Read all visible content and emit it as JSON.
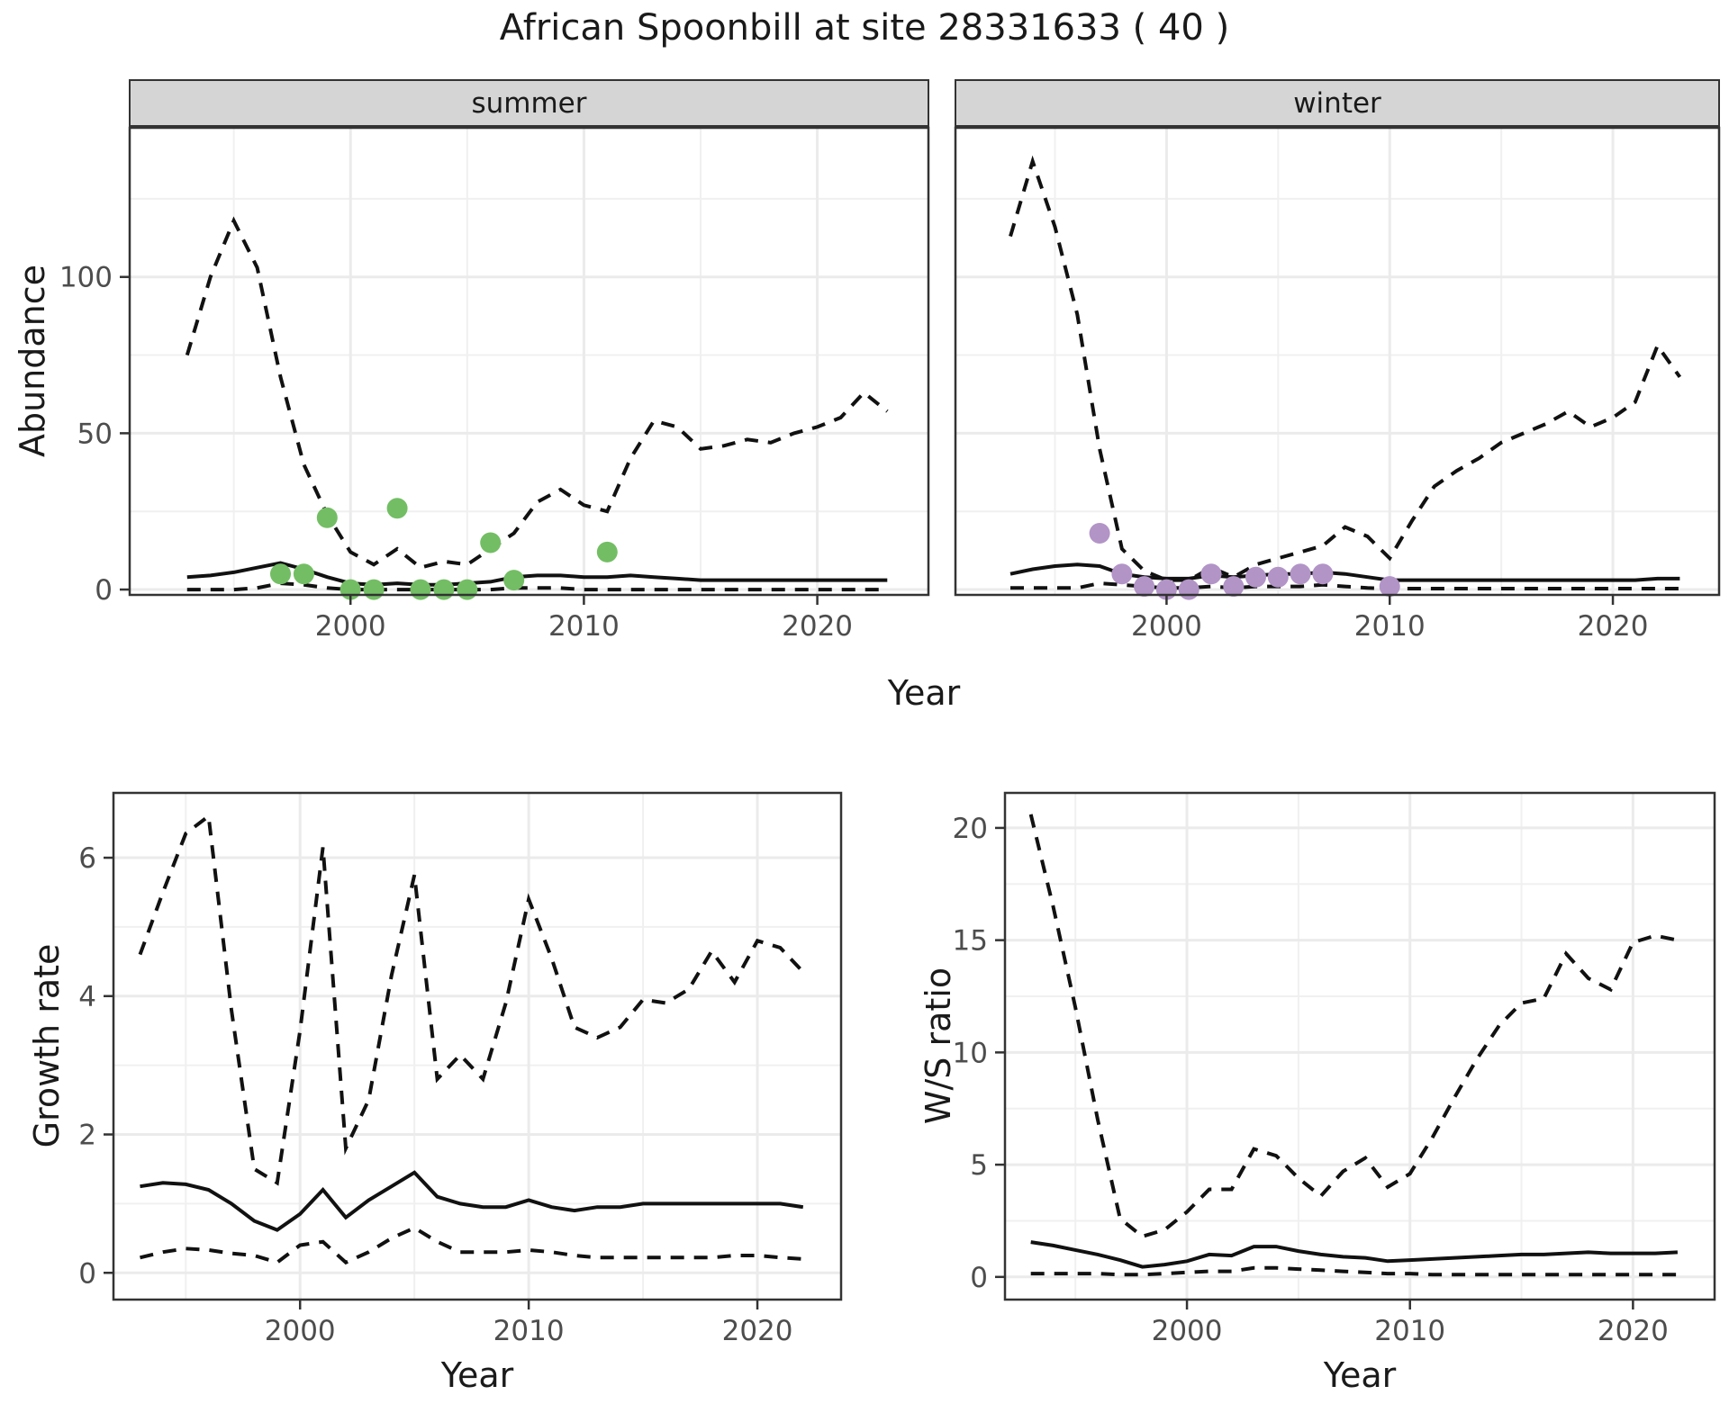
{
  "title": "African Spoonbill at site 28331633 ( 40 )",
  "facets": [
    {
      "label": "summer"
    },
    {
      "label": "winter"
    }
  ],
  "axes": {
    "abundance_label": "Abundance",
    "year_label": "Year",
    "growth_label": "Growth rate",
    "ws_label": "W/S ratio"
  },
  "colors": {
    "summer_points": "#73be64",
    "winter_points": "#b294c7",
    "line": "#111111",
    "grid_major": "#ebebeb",
    "grid_minor": "#f0f0f0",
    "panel_border": "#333333",
    "strip_bg": "#d5d5d5",
    "tick_text": "#4d4d4d"
  },
  "chart_data": [
    {
      "type": "line",
      "title": "summer",
      "xlabel": "Year",
      "ylabel": "Abundance",
      "xlim": [
        1990.5,
        2024.8
      ],
      "ylim": [
        -2,
        148
      ],
      "xticks": [
        2000,
        2010,
        2020
      ],
      "xticks_minor": [
        1995,
        2005,
        2015
      ],
      "yticks": [
        0,
        50,
        100
      ],
      "yticks_minor": [
        25,
        75,
        125
      ],
      "x": [
        1993,
        1994,
        1995,
        1996,
        1997,
        1998,
        1999,
        2000,
        2001,
        2002,
        2003,
        2004,
        2005,
        2006,
        2007,
        2008,
        2009,
        2010,
        2011,
        2012,
        2013,
        2014,
        2015,
        2016,
        2017,
        2018,
        2019,
        2020,
        2021,
        2022,
        2023
      ],
      "series": [
        {
          "name": "upper_ci",
          "style": "dashed",
          "values": [
            75,
            100,
            118,
            103,
            68,
            40,
            24,
            12,
            8,
            13,
            7,
            9,
            8,
            13,
            18,
            28,
            32,
            27,
            25,
            42,
            54,
            52,
            45,
            46,
            48,
            47,
            50,
            52,
            55,
            63,
            57
          ]
        },
        {
          "name": "mean",
          "style": "solid",
          "values": [
            4,
            4.5,
            5.5,
            7,
            8.5,
            6.5,
            4,
            2,
            1.5,
            2,
            1.5,
            1.5,
            2,
            2.5,
            4,
            4.5,
            4.5,
            4,
            4,
            4.5,
            4,
            3.5,
            3,
            3,
            3,
            3,
            3,
            3,
            3,
            3,
            3
          ]
        },
        {
          "name": "lower_ci",
          "style": "dashed",
          "values": [
            0,
            0,
            0,
            0.5,
            2,
            1.5,
            0.5,
            0,
            0,
            0,
            0,
            0,
            0,
            0,
            0.5,
            0.5,
            0.5,
            0,
            0,
            0,
            0,
            0,
            0,
            0,
            0,
            0,
            0,
            0,
            0,
            0,
            0
          ]
        }
      ],
      "points": {
        "name": "observed_counts",
        "color_key": "summer_points",
        "xy": [
          [
            1997,
            5
          ],
          [
            1998,
            5
          ],
          [
            1999,
            23
          ],
          [
            2000,
            0
          ],
          [
            2001,
            0
          ],
          [
            2002,
            26
          ],
          [
            2003,
            0
          ],
          [
            2004,
            0
          ],
          [
            2005,
            0
          ],
          [
            2006,
            15
          ],
          [
            2007,
            3
          ],
          [
            2011,
            12
          ]
        ]
      }
    },
    {
      "type": "line",
      "title": "winter",
      "xlabel": "Year",
      "ylabel": "Abundance",
      "xlim": [
        1990.5,
        2024.8
      ],
      "ylim": [
        -2,
        148
      ],
      "xticks": [
        2000,
        2010,
        2020
      ],
      "xticks_minor": [
        1995,
        2005,
        2015
      ],
      "yticks": [
        0,
        50,
        100
      ],
      "yticks_minor": [
        25,
        75,
        125
      ],
      "x": [
        1993,
        1994,
        1995,
        1996,
        1997,
        1998,
        1999,
        2000,
        2001,
        2002,
        2003,
        2004,
        2005,
        2006,
        2007,
        2008,
        2009,
        2010,
        2011,
        2012,
        2013,
        2014,
        2015,
        2016,
        2017,
        2018,
        2019,
        2020,
        2021,
        2022,
        2023
      ],
      "series": [
        {
          "name": "upper_ci",
          "style": "dashed",
          "values": [
            113,
            137,
            116,
            88,
            45,
            13,
            6,
            3,
            3,
            7,
            4,
            8,
            10,
            12,
            14,
            20,
            17,
            10,
            22,
            33,
            38,
            42,
            47,
            50,
            53,
            57,
            52,
            55,
            60,
            78,
            68
          ]
        },
        {
          "name": "mean",
          "style": "solid",
          "values": [
            5,
            6.5,
            7.5,
            8,
            7.5,
            5,
            4,
            3.5,
            3.5,
            4.5,
            4,
            4.5,
            5,
            5,
            5.5,
            5,
            4,
            3,
            3,
            3,
            3,
            3,
            3,
            3,
            3,
            3,
            3,
            3,
            3,
            3.5,
            3.5
          ]
        },
        {
          "name": "lower_ci",
          "style": "dashed",
          "values": [
            0.5,
            0.5,
            0.5,
            0.5,
            2,
            1.5,
            1,
            0.5,
            0.5,
            1,
            0.5,
            1,
            1,
            1,
            1.5,
            1,
            0.5,
            0.3,
            0.3,
            0.3,
            0.3,
            0.3,
            0.3,
            0.3,
            0.3,
            0.3,
            0.3,
            0.3,
            0.3,
            0.3,
            0.3
          ]
        }
      ],
      "points": {
        "name": "observed_counts",
        "color_key": "winter_points",
        "xy": [
          [
            1997,
            18
          ],
          [
            1998,
            5
          ],
          [
            1999,
            1
          ],
          [
            2000,
            0
          ],
          [
            2001,
            0
          ],
          [
            2002,
            5
          ],
          [
            2003,
            1
          ],
          [
            2004,
            4
          ],
          [
            2005,
            4
          ],
          [
            2006,
            5
          ],
          [
            2007,
            5
          ],
          [
            2010,
            1
          ]
        ]
      }
    },
    {
      "type": "line",
      "title": "Growth rate",
      "xlabel": "Year",
      "ylabel": "Growth rate",
      "xlim": [
        1991.8,
        2023.7
      ],
      "ylim": [
        -0.4,
        6.95
      ],
      "xticks": [
        2000,
        2010,
        2020
      ],
      "xticks_minor": [
        1995,
        2005,
        2015
      ],
      "yticks": [
        0,
        2,
        4,
        6
      ],
      "yticks_minor": [
        1,
        3,
        5
      ],
      "x": [
        1993,
        1994,
        1995,
        1996,
        1997,
        1998,
        1999,
        2000,
        2001,
        2002,
        2003,
        2004,
        2005,
        2006,
        2007,
        2008,
        2009,
        2010,
        2011,
        2012,
        2013,
        2014,
        2015,
        2016,
        2017,
        2018,
        2019,
        2020,
        2021,
        2022
      ],
      "series": [
        {
          "name": "upper_ci",
          "style": "dashed",
          "values": [
            4.6,
            5.5,
            6.35,
            6.6,
            3.8,
            1.5,
            1.3,
            3.5,
            6.15,
            1.8,
            2.5,
            4.3,
            5.75,
            2.8,
            3.15,
            2.8,
            3.9,
            5.4,
            4.55,
            3.55,
            3.4,
            3.55,
            3.95,
            3.9,
            4.1,
            4.65,
            4.2,
            4.8,
            4.7,
            4.35
          ]
        },
        {
          "name": "mean",
          "style": "solid",
          "values": [
            1.25,
            1.3,
            1.28,
            1.2,
            1.0,
            0.75,
            0.62,
            0.85,
            1.2,
            0.8,
            1.05,
            1.25,
            1.45,
            1.1,
            1.0,
            0.95,
            0.95,
            1.05,
            0.95,
            0.9,
            0.95,
            0.95,
            1.0,
            1.0,
            1.0,
            1.0,
            1.0,
            1.0,
            1.0,
            0.95
          ]
        },
        {
          "name": "lower_ci",
          "style": "dashed",
          "values": [
            0.22,
            0.3,
            0.35,
            0.33,
            0.28,
            0.25,
            0.15,
            0.4,
            0.45,
            0.15,
            0.3,
            0.5,
            0.65,
            0.45,
            0.3,
            0.3,
            0.3,
            0.33,
            0.3,
            0.25,
            0.22,
            0.22,
            0.22,
            0.22,
            0.22,
            0.22,
            0.25,
            0.25,
            0.22,
            0.2
          ]
        }
      ]
    },
    {
      "type": "line",
      "title": "W/S ratio",
      "xlabel": "Year",
      "ylabel": "W/S ratio",
      "xlim": [
        1991.8,
        2023.7
      ],
      "ylim": [
        -1.05,
        21.6
      ],
      "xticks": [
        2000,
        2010,
        2020
      ],
      "xticks_minor": [
        1995,
        2005,
        2015
      ],
      "yticks": [
        0,
        5,
        10,
        15,
        20
      ],
      "yticks_minor": [
        2.5,
        7.5,
        12.5,
        17.5
      ],
      "x": [
        1993,
        1994,
        1995,
        1996,
        1997,
        1998,
        1999,
        2000,
        2001,
        2002,
        2003,
        2004,
        2005,
        2006,
        2007,
        2008,
        2009,
        2010,
        2011,
        2012,
        2013,
        2014,
        2015,
        2016,
        2017,
        2018,
        2019,
        2020,
        2021,
        2022
      ],
      "series": [
        {
          "name": "upper_ci",
          "style": "dashed",
          "values": [
            20.6,
            16.5,
            12,
            7,
            2.6,
            1.8,
            2.1,
            2.9,
            3.9,
            3.9,
            5.7,
            5.4,
            4.4,
            3.6,
            4.7,
            5.3,
            4.0,
            4.6,
            6.2,
            8.0,
            9.7,
            11.2,
            12.2,
            12.4,
            14.4,
            13.3,
            12.8,
            14.9,
            15.2,
            15.0
          ]
        },
        {
          "name": "mean",
          "style": "solid",
          "values": [
            1.55,
            1.4,
            1.2,
            1.0,
            0.75,
            0.45,
            0.55,
            0.7,
            1.0,
            0.95,
            1.35,
            1.35,
            1.15,
            1.0,
            0.9,
            0.85,
            0.7,
            0.75,
            0.8,
            0.85,
            0.9,
            0.95,
            1.0,
            1.0,
            1.05,
            1.1,
            1.05,
            1.05,
            1.05,
            1.1
          ]
        },
        {
          "name": "lower_ci",
          "style": "dashed",
          "values": [
            0.15,
            0.15,
            0.15,
            0.15,
            0.1,
            0.1,
            0.15,
            0.2,
            0.25,
            0.25,
            0.4,
            0.4,
            0.35,
            0.3,
            0.25,
            0.2,
            0.15,
            0.15,
            0.1,
            0.1,
            0.1,
            0.1,
            0.1,
            0.1,
            0.1,
            0.1,
            0.1,
            0.1,
            0.1,
            0.1
          ]
        }
      ]
    }
  ]
}
